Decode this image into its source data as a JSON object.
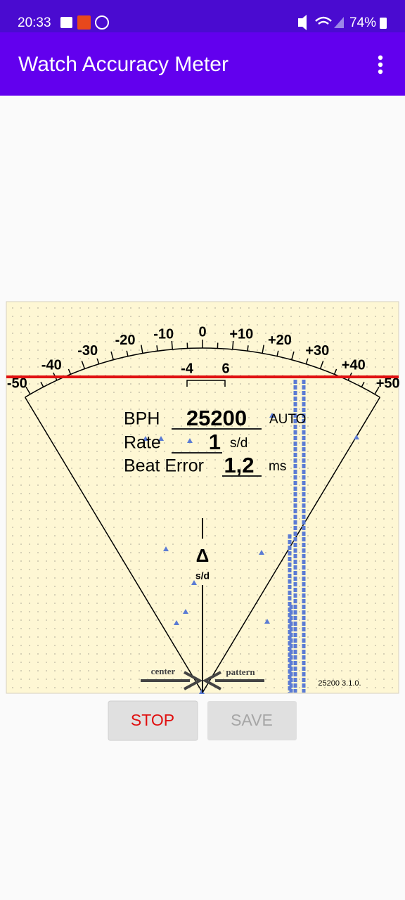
{
  "status_bar": {
    "time": "20:33",
    "battery": "74%"
  },
  "app_bar": {
    "title": "Watch Accuracy Meter"
  },
  "meter": {
    "scale_labels": [
      "-50",
      "-40",
      "-30",
      "-20",
      "-10",
      "0",
      "+10",
      "+20",
      "+30",
      "+40",
      "+50"
    ],
    "center_labels": [
      "-4",
      "6"
    ],
    "readouts": {
      "bph_label": "BPH",
      "bph": "25200",
      "bph_mode": "AUTO",
      "rate_label": "Rate",
      "rate": "1",
      "rate_unit": "s/d",
      "beat_error_label": "Beat Error",
      "beat_error": "1,2",
      "beat_error_unit": "ms"
    },
    "delta": "Δ",
    "delta_unit": "s/d",
    "center_label": "center",
    "pattern_label": "pattern",
    "version": "25200 3.1.0."
  },
  "buttons": {
    "stop": "STOP",
    "save": "SAVE"
  }
}
